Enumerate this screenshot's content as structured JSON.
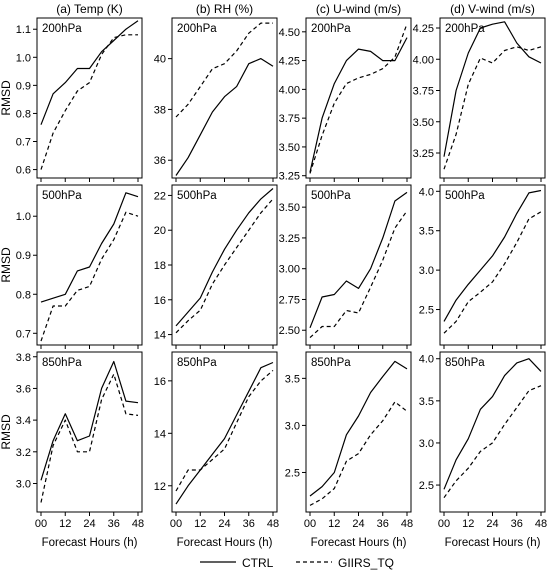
{
  "figure": {
    "ylabel": "RMSD",
    "xlabel": "Forecast Hours (h)",
    "legend": [
      {
        "name": "CTRL",
        "style": "solid"
      },
      {
        "name": "GIIRS_TQ",
        "style": "dashed"
      }
    ]
  },
  "chart_data": [
    {
      "type": "line",
      "column_title": "(a) Temp (K)",
      "level": "200hPa",
      "x": [
        0,
        6,
        12,
        18,
        24,
        30,
        36,
        42,
        48
      ],
      "xticks": [
        0,
        12,
        24,
        36,
        48
      ],
      "ylim": [
        0.57,
        1.14
      ],
      "yticks": [
        "0.6",
        "0.7",
        "0.8",
        "0.9",
        "1.0",
        "1.1"
      ],
      "series": [
        {
          "name": "CTRL",
          "values": [
            0.76,
            0.87,
            0.91,
            0.96,
            0.96,
            1.02,
            1.06,
            1.1,
            1.13
          ]
        },
        {
          "name": "GIIRS_TQ",
          "values": [
            0.6,
            0.73,
            0.81,
            0.88,
            0.91,
            1.01,
            1.07,
            1.08,
            1.08
          ]
        }
      ]
    },
    {
      "type": "line",
      "column_title": "(b) RH (%)",
      "level": "200hPa",
      "x": [
        0,
        6,
        12,
        18,
        24,
        30,
        36,
        42,
        48
      ],
      "xticks": [
        0,
        12,
        24,
        36,
        48
      ],
      "ylim": [
        35.3,
        41.6
      ],
      "yticks": [
        "36",
        "38",
        "40"
      ],
      "series": [
        {
          "name": "CTRL",
          "values": [
            35.4,
            36.1,
            37.0,
            37.9,
            38.5,
            38.9,
            39.8,
            40.0,
            39.7
          ]
        },
        {
          "name": "GIIRS_TQ",
          "values": [
            37.7,
            38.2,
            38.9,
            39.6,
            39.8,
            40.3,
            41.0,
            41.4,
            41.4
          ]
        }
      ]
    },
    {
      "type": "line",
      "column_title": "(c) U-wind (m/s)",
      "level": "200hPa",
      "x": [
        0,
        6,
        12,
        18,
        24,
        30,
        36,
        42,
        48
      ],
      "xticks": [
        0,
        12,
        24,
        36,
        48
      ],
      "ylim": [
        3.23,
        4.62
      ],
      "yticks": [
        "3.25",
        "3.50",
        "3.75",
        "4.00",
        "4.25",
        "4.50"
      ],
      "series": [
        {
          "name": "CTRL",
          "values": [
            3.28,
            3.75,
            4.05,
            4.25,
            4.35,
            4.33,
            4.25,
            4.25,
            4.45
          ]
        },
        {
          "name": "GIIRS_TQ",
          "values": [
            3.27,
            3.6,
            3.88,
            4.05,
            4.1,
            4.13,
            4.18,
            4.28,
            4.57
          ]
        }
      ]
    },
    {
      "type": "line",
      "column_title": "(d) V-wind (m/s)",
      "level": "200hPa",
      "x": [
        0,
        6,
        12,
        18,
        24,
        30,
        36,
        42,
        48
      ],
      "xticks": [
        0,
        12,
        24,
        36,
        48
      ],
      "ylim": [
        3.05,
        4.33
      ],
      "yticks": [
        "3.25",
        "3.50",
        "3.75",
        "4.00",
        "4.25"
      ],
      "series": [
        {
          "name": "CTRL",
          "values": [
            3.22,
            3.75,
            4.05,
            4.25,
            4.28,
            4.3,
            4.13,
            4.02,
            3.97
          ]
        },
        {
          "name": "GIIRS_TQ",
          "values": [
            3.12,
            3.4,
            3.8,
            4.01,
            3.97,
            4.07,
            4.1,
            4.07,
            4.1
          ]
        }
      ]
    },
    {
      "type": "line",
      "level": "500hPa",
      "x": [
        0,
        6,
        12,
        18,
        24,
        30,
        36,
        42,
        48
      ],
      "xticks": [
        0,
        12,
        24,
        36,
        48
      ],
      "ylim": [
        0.67,
        1.08
      ],
      "yticks": [
        "0.7",
        "0.8",
        "0.9",
        "1.0"
      ],
      "series": [
        {
          "name": "CTRL",
          "values": [
            0.78,
            0.79,
            0.8,
            0.86,
            0.87,
            0.93,
            0.98,
            1.06,
            1.05
          ]
        },
        {
          "name": "GIIRS_TQ",
          "values": [
            0.68,
            0.77,
            0.77,
            0.81,
            0.82,
            0.89,
            0.94,
            1.01,
            1.0
          ]
        }
      ]
    },
    {
      "type": "line",
      "level": "500hPa",
      "x": [
        0,
        6,
        12,
        18,
        24,
        30,
        36,
        42,
        48
      ],
      "xticks": [
        0,
        12,
        24,
        36,
        48
      ],
      "ylim": [
        13.4,
        22.6
      ],
      "yticks": [
        "14",
        "16",
        "18",
        "20",
        "22"
      ],
      "series": [
        {
          "name": "CTRL",
          "values": [
            14.5,
            15.3,
            16.1,
            17.6,
            18.9,
            20.0,
            21.0,
            21.8,
            22.4
          ]
        },
        {
          "name": "GIIRS_TQ",
          "values": [
            14.1,
            14.8,
            15.4,
            16.9,
            18.0,
            19.0,
            20.0,
            21.0,
            21.8
          ]
        }
      ]
    },
    {
      "type": "line",
      "level": "500hPa",
      "x": [
        0,
        6,
        12,
        18,
        24,
        30,
        36,
        42,
        48
      ],
      "xticks": [
        0,
        12,
        24,
        36,
        48
      ],
      "ylim": [
        2.38,
        3.68
      ],
      "yticks": [
        "2.50",
        "2.75",
        "3.00",
        "3.25",
        "3.50"
      ],
      "series": [
        {
          "name": "CTRL",
          "values": [
            2.52,
            2.77,
            2.79,
            2.9,
            2.84,
            3.0,
            3.25,
            3.55,
            3.62
          ]
        },
        {
          "name": "GIIRS_TQ",
          "values": [
            2.44,
            2.53,
            2.53,
            2.66,
            2.64,
            2.85,
            3.07,
            3.33,
            3.47
          ]
        }
      ]
    },
    {
      "type": "line",
      "level": "500hPa",
      "x": [
        0,
        6,
        12,
        18,
        24,
        30,
        36,
        42,
        48
      ],
      "xticks": [
        0,
        12,
        24,
        36,
        48
      ],
      "ylim": [
        2.05,
        4.08
      ],
      "yticks": [
        "2.5",
        "3.0",
        "3.5",
        "4.0"
      ],
      "series": [
        {
          "name": "CTRL",
          "values": [
            2.35,
            2.62,
            2.82,
            3.0,
            3.18,
            3.42,
            3.72,
            3.98,
            4.01
          ]
        },
        {
          "name": "GIIRS_TQ",
          "values": [
            2.2,
            2.35,
            2.6,
            2.72,
            2.85,
            3.08,
            3.35,
            3.65,
            3.74
          ]
        }
      ]
    },
    {
      "type": "line",
      "level": "850hPa",
      "x": [
        0,
        6,
        12,
        18,
        24,
        30,
        36,
        42,
        48
      ],
      "xticks": [
        0,
        12,
        24,
        36,
        48
      ],
      "ylim": [
        2.82,
        3.83
      ],
      "yticks": [
        "3.0",
        "3.2",
        "3.4",
        "3.6",
        "3.8"
      ],
      "series": [
        {
          "name": "CTRL",
          "values": [
            3.02,
            3.27,
            3.44,
            3.27,
            3.3,
            3.6,
            3.77,
            3.52,
            3.51
          ]
        },
        {
          "name": "GIIRS_TQ",
          "values": [
            2.88,
            3.24,
            3.4,
            3.2,
            3.2,
            3.53,
            3.69,
            3.44,
            3.43
          ]
        }
      ]
    },
    {
      "type": "line",
      "level": "850hPa",
      "x": [
        0,
        6,
        12,
        18,
        24,
        30,
        36,
        42,
        48
      ],
      "xticks": [
        0,
        12,
        24,
        36,
        48
      ],
      "ylim": [
        11.0,
        17.1
      ],
      "yticks": [
        "12",
        "14",
        "16"
      ],
      "series": [
        {
          "name": "CTRL",
          "values": [
            11.3,
            12.0,
            12.6,
            13.2,
            13.8,
            14.7,
            15.6,
            16.5,
            16.7
          ]
        },
        {
          "name": "GIIRS_TQ",
          "values": [
            11.8,
            12.6,
            12.6,
            13.0,
            13.4,
            14.4,
            15.4,
            16.0,
            16.4
          ]
        }
      ]
    },
    {
      "type": "line",
      "level": "850hPa",
      "x": [
        0,
        6,
        12,
        18,
        24,
        30,
        36,
        42,
        48
      ],
      "xticks": [
        0,
        12,
        24,
        36,
        48
      ],
      "ylim": [
        2.08,
        3.78
      ],
      "yticks": [
        "2.5",
        "3.0",
        "3.5"
      ],
      "series": [
        {
          "name": "CTRL",
          "values": [
            2.25,
            2.35,
            2.5,
            2.9,
            3.1,
            3.35,
            3.52,
            3.68,
            3.6
          ]
        },
        {
          "name": "GIIRS_TQ",
          "values": [
            2.15,
            2.22,
            2.33,
            2.62,
            2.7,
            2.9,
            3.05,
            3.25,
            3.15
          ]
        }
      ]
    },
    {
      "type": "line",
      "level": "850hPa",
      "x": [
        0,
        6,
        12,
        18,
        24,
        30,
        36,
        42,
        48
      ],
      "xticks": [
        0,
        12,
        24,
        36,
        48
      ],
      "ylim": [
        2.18,
        4.08
      ],
      "yticks": [
        "2.5",
        "3.0",
        "3.5",
        "4.0"
      ],
      "series": [
        {
          "name": "CTRL",
          "values": [
            2.45,
            2.8,
            3.05,
            3.4,
            3.55,
            3.8,
            3.95,
            4.0,
            3.85
          ]
        },
        {
          "name": "GIIRS_TQ",
          "values": [
            2.35,
            2.55,
            2.7,
            2.9,
            3.0,
            3.22,
            3.42,
            3.62,
            3.68
          ]
        }
      ]
    }
  ]
}
